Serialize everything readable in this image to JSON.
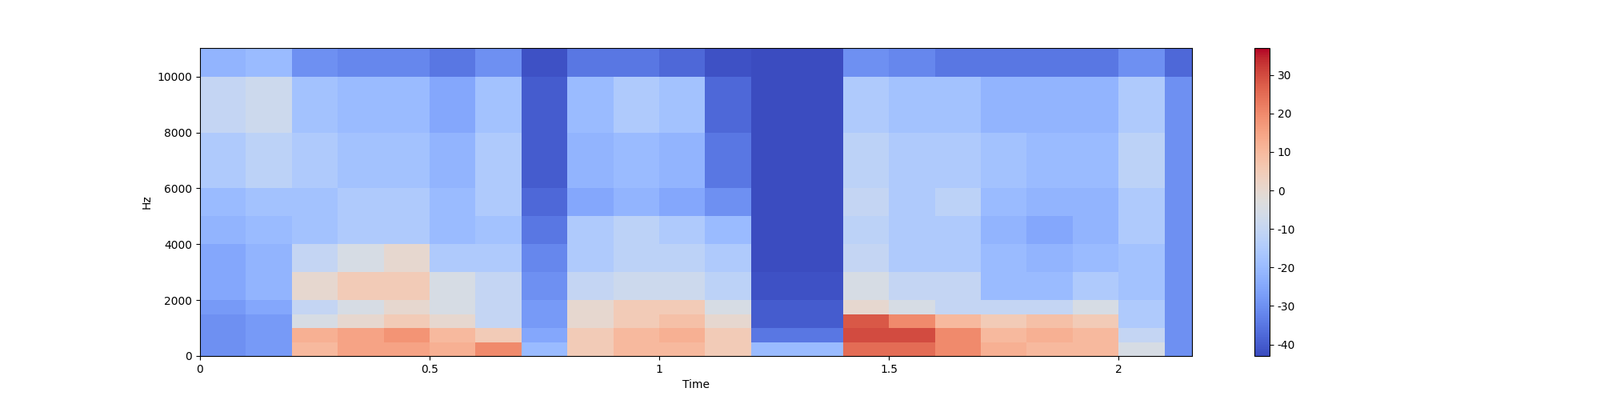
{
  "chart_data": {
    "type": "heatmap",
    "xlabel": "Time",
    "ylabel": "Hz",
    "x_edges": [
      0,
      0.1,
      0.2,
      0.3,
      0.4,
      0.5,
      0.6,
      0.7,
      0.8,
      0.9,
      1.0,
      1.1,
      1.2,
      1.3,
      1.4,
      1.5,
      1.6,
      1.7,
      1.8,
      1.9,
      2.0,
      2.1,
      2.16
    ],
    "y_edges": [
      0,
      500,
      1000,
      1500,
      2000,
      3000,
      4000,
      5000,
      6000,
      8000,
      10000,
      11025
    ],
    "cells": [
      [
        -30,
        -28,
        10,
        15,
        15,
        12,
        20,
        -20,
        5,
        10,
        10,
        5,
        -20,
        -20,
        25,
        25,
        20,
        12,
        10,
        10,
        -5,
        -30
      ],
      [
        -30,
        -28,
        12,
        15,
        18,
        10,
        5,
        -25,
        5,
        10,
        12,
        5,
        -35,
        -35,
        30,
        30,
        20,
        10,
        12,
        10,
        -10,
        -30
      ],
      [
        -30,
        -28,
        -5,
        0,
        5,
        0,
        -10,
        -28,
        0,
        5,
        8,
        0,
        -40,
        -40,
        28,
        20,
        10,
        5,
        8,
        5,
        -15,
        -30
      ],
      [
        -28,
        -25,
        -10,
        -5,
        0,
        -5,
        -10,
        -28,
        0,
        5,
        5,
        -5,
        -40,
        -40,
        0,
        -5,
        -10,
        -10,
        -10,
        -5,
        -15,
        -30
      ],
      [
        -25,
        -22,
        0,
        5,
        5,
        -5,
        -10,
        -30,
        -10,
        -8,
        -8,
        -12,
        -42,
        -42,
        -5,
        -10,
        -10,
        -20,
        -20,
        -15,
        -18,
        -30
      ],
      [
        -25,
        -22,
        -10,
        -5,
        0,
        -15,
        -15,
        -32,
        -15,
        -12,
        -12,
        -15,
        -43,
        -43,
        -10,
        -15,
        -15,
        -20,
        -22,
        -20,
        -18,
        -30
      ],
      [
        -22,
        -20,
        -18,
        -15,
        -15,
        -20,
        -18,
        -35,
        -15,
        -12,
        -15,
        -20,
        -43,
        -43,
        -12,
        -15,
        -15,
        -22,
        -25,
        -22,
        -15,
        -30
      ],
      [
        -20,
        -18,
        -18,
        -15,
        -15,
        -20,
        -15,
        -38,
        -25,
        -22,
        -25,
        -30,
        -43,
        -43,
        -10,
        -15,
        -12,
        -20,
        -22,
        -22,
        -15,
        -30
      ],
      [
        -15,
        -12,
        -15,
        -18,
        -18,
        -22,
        -15,
        -40,
        -22,
        -20,
        -22,
        -35,
        -43,
        -43,
        -12,
        -15,
        -15,
        -18,
        -20,
        -20,
        -12,
        -30
      ],
      [
        -10,
        -8,
        -18,
        -20,
        -20,
        -25,
        -18,
        -40,
        -20,
        -15,
        -18,
        -38,
        -43,
        -43,
        -15,
        -18,
        -18,
        -22,
        -22,
        -22,
        -15,
        -30
      ],
      [
        -22,
        -20,
        -30,
        -32,
        -32,
        -35,
        -30,
        -42,
        -35,
        -35,
        -38,
        -42,
        -43,
        -43,
        -30,
        -32,
        -35,
        -35,
        -35,
        -35,
        -30,
        -38
      ]
    ],
    "xlim": [
      0,
      2.16
    ],
    "ylim": [
      0,
      11025
    ],
    "xticks": [
      0,
      0.5,
      1,
      1.5,
      2
    ],
    "yticks": [
      0,
      2000,
      4000,
      6000,
      8000,
      10000
    ],
    "colorbar_range": [
      -43,
      37
    ],
    "colorbar_ticks": [
      -40,
      -30,
      -20,
      -10,
      0,
      10,
      20,
      30
    ]
  }
}
